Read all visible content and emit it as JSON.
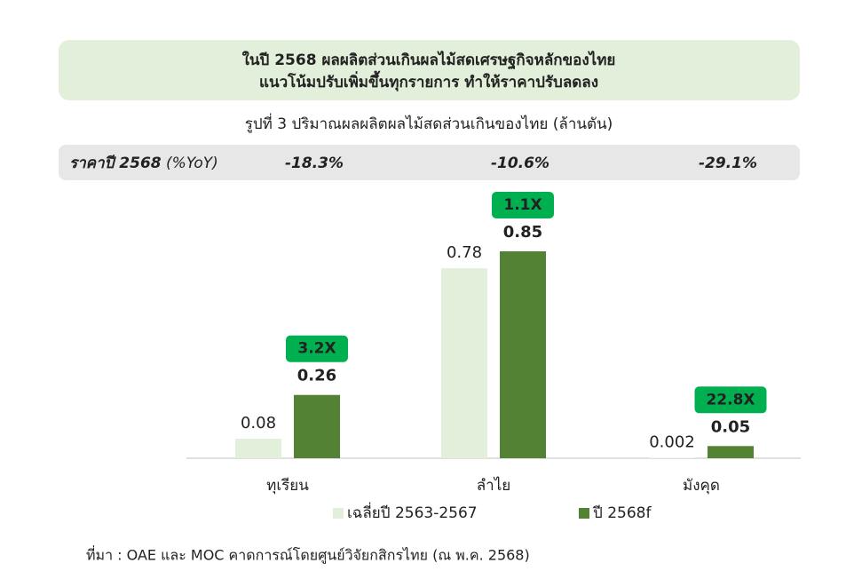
{
  "chart_data": {
    "type": "bar",
    "title": [
      "ในปี 2568 ผลผลิตส่วนเกินผลไม้สดเศรษฐกิจหลักของไทย",
      "แนวโน้มปรับเพิ่มขึ้นทุกรายการ ทำให้ราคาปรับลดลง"
    ],
    "subtitle": "รูปที่ 3 ปริมาณผลผลิตผลไม้สดส่วนเกินของไทย (ล้านตัน)",
    "price_row": {
      "label": "ราคาปี 2568",
      "unit": "(%YoY)",
      "values": [
        "-18.3%",
        "-10.6%",
        "-29.1%"
      ]
    },
    "categories": [
      "ทุเรียน",
      "ลำไย",
      "มังคุด"
    ],
    "series": [
      {
        "name": "เฉลี่ยปี 2563-2567",
        "color": "#e2efda",
        "values": [
          0.08,
          0.78,
          0.002
        ]
      },
      {
        "name": "ปี 2568f",
        "color": "#548235",
        "values": [
          0.26,
          0.85,
          0.05
        ]
      }
    ],
    "badges": [
      "3.2X",
      "1.1X",
      "22.8X"
    ],
    "badge_color": "#00b050",
    "source": "ที่มา : OAE และ MOC คาดการณ์โดยศูนย์วิจัยกสิกรไทย (ณ พ.ค. 2568)"
  }
}
